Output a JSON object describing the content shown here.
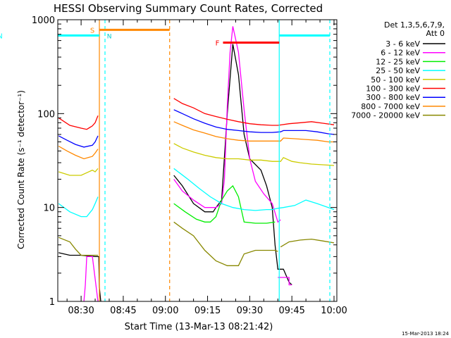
{
  "chart_data": {
    "type": "line",
    "title": "HESSI Observing Summary Count Rates, Corrected",
    "xlabel": "Start Time (13-Mar-13 08:21:42)",
    "ylabel": "Corrected Count Rate (s⁻¹ detector⁻¹)",
    "yscale": "log",
    "ylim": [
      1,
      1000
    ],
    "xlim_minutes": [
      21.7,
      121
    ],
    "x_ticks": [
      {
        "label": "08:30",
        "t": 30
      },
      {
        "label": "08:45",
        "t": 45
      },
      {
        "label": "09:00",
        "t": 60
      },
      {
        "label": "09:15",
        "t": 75
      },
      {
        "label": "09:30",
        "t": 90
      },
      {
        "label": "09:45",
        "t": 105
      },
      {
        "label": "10:00",
        "t": 120
      }
    ],
    "y_ticks": [
      {
        "label": "1",
        "v": 1
      },
      {
        "label": "10",
        "v": 10
      },
      {
        "label": "100",
        "v": 100
      },
      {
        "label": "1000",
        "v": 1000
      }
    ],
    "legend": {
      "header": [
        "Det 1,3,5,6,7,9,",
        "Att 0"
      ],
      "placement": "right"
    },
    "series": [
      {
        "name": "3 - 6 keV",
        "color": "#000000",
        "segments": [
          [
            [
              22,
              3.3
            ],
            [
              26,
              3.1
            ],
            [
              30,
              3.1
            ],
            [
              35,
              3.0
            ],
            [
              36.3,
              3.0
            ],
            [
              36.5,
              1.4
            ],
            [
              37,
              1
            ]
          ],
          [
            [
              63,
              22
            ],
            [
              66,
              17
            ],
            [
              70,
              11
            ],
            [
              74,
              9
            ],
            [
              77,
              9
            ],
            [
              78,
              10
            ],
            [
              80,
              12
            ],
            [
              82,
              100
            ],
            [
              84,
              550
            ],
            [
              86,
              260
            ],
            [
              88,
              60
            ],
            [
              90,
              33
            ],
            [
              94,
              25
            ],
            [
              96,
              17
            ],
            [
              98,
              10
            ],
            [
              99,
              4
            ],
            [
              100,
              2.2
            ],
            [
              102,
              2.2
            ],
            [
              104,
              1.6
            ],
            [
              105,
              1.5
            ]
          ]
        ]
      },
      {
        "name": "6 - 12 keV",
        "color": "#ff00ff",
        "segments": [
          [
            [
              31,
              1
            ],
            [
              31.5,
              1.5
            ],
            [
              32,
              3.0
            ],
            [
              34,
              3.0
            ],
            [
              36,
              1.0
            ]
          ],
          [
            [
              63,
              20
            ],
            [
              66,
              15
            ],
            [
              70,
              12
            ],
            [
              74,
              10
            ],
            [
              78,
              10
            ],
            [
              80,
              11
            ],
            [
              81,
              20
            ],
            [
              82,
              120
            ],
            [
              83,
              450
            ],
            [
              84,
              850
            ],
            [
              86,
              450
            ],
            [
              88,
              110
            ],
            [
              90,
              33
            ],
            [
              92,
              19
            ],
            [
              95,
              14
            ],
            [
              98,
              11
            ],
            [
              100,
              7
            ],
            [
              101,
              7.4
            ]
          ],
          [
            [
              100,
              1.8
            ],
            [
              104,
              1.8
            ],
            [
              104,
              1.5
            ],
            [
              105,
              1.5
            ]
          ]
        ]
      },
      {
        "name": "12 - 25 keV",
        "color": "#00ee00",
        "segments": [
          [
            [
              63,
              11
            ],
            [
              67,
              9
            ],
            [
              71,
              7.5
            ],
            [
              74,
              7
            ],
            [
              76,
              7
            ],
            [
              78,
              8
            ],
            [
              80,
              12
            ],
            [
              82,
              15
            ],
            [
              84,
              17
            ],
            [
              86,
              13
            ],
            [
              88,
              7
            ],
            [
              92,
              6.8
            ],
            [
              96,
              6.8
            ],
            [
              99,
              7
            ]
          ]
        ]
      },
      {
        "name": "25 - 50 keV",
        "color": "#00ffff",
        "segments": [
          [
            [
              22,
              11
            ],
            [
              26,
              9
            ],
            [
              30,
              8
            ],
            [
              32,
              8
            ],
            [
              34,
              9.5
            ],
            [
              35,
              11
            ],
            [
              36,
              13
            ]
          ],
          [
            [
              63,
              26
            ],
            [
              68,
              20
            ],
            [
              72,
              16
            ],
            [
              76,
              13
            ],
            [
              80,
              11
            ],
            [
              84,
              10
            ],
            [
              88,
              9.5
            ],
            [
              92,
              9.3
            ],
            [
              96,
              9.5
            ],
            [
              98,
              9.5
            ],
            [
              100,
              9.8
            ],
            [
              102,
              10
            ],
            [
              106,
              10.5
            ],
            [
              110,
              12
            ],
            [
              114,
              11
            ],
            [
              118,
              10
            ],
            [
              120,
              9.5
            ]
          ]
        ]
      },
      {
        "name": "50 - 100 keV",
        "color": "#cccc00",
        "segments": [
          [
            [
              22,
              24
            ],
            [
              26,
              22
            ],
            [
              30,
              22
            ],
            [
              34,
              25
            ],
            [
              35,
              24
            ],
            [
              36,
              26
            ]
          ],
          [
            [
              63,
              48
            ],
            [
              66,
              43
            ],
            [
              70,
              39
            ],
            [
              74,
              36
            ],
            [
              78,
              34
            ],
            [
              82,
              33
            ],
            [
              86,
              33
            ],
            [
              90,
              32
            ],
            [
              94,
              32
            ],
            [
              98,
              31
            ],
            [
              101,
              31
            ],
            [
              102,
              34
            ],
            [
              105,
              31
            ],
            [
              108,
              30
            ],
            [
              112,
              29
            ],
            [
              116,
              28.5
            ],
            [
              120,
              28
            ]
          ]
        ]
      },
      {
        "name": "100 - 300 keV",
        "color": "#ff0000",
        "segments": [
          [
            [
              22,
              90
            ],
            [
              26,
              75
            ],
            [
              30,
              70
            ],
            [
              32,
              68
            ],
            [
              34,
              74
            ],
            [
              35,
              80
            ],
            [
              36,
              95
            ]
          ],
          [
            [
              63,
              145
            ],
            [
              66,
              128
            ],
            [
              70,
              115
            ],
            [
              74,
              100
            ],
            [
              78,
              93
            ],
            [
              82,
              87
            ],
            [
              86,
              82
            ],
            [
              90,
              78
            ],
            [
              94,
              76
            ],
            [
              98,
              75
            ],
            [
              100,
              75
            ],
            [
              104,
              78
            ],
            [
              108,
              80
            ],
            [
              112,
              82
            ],
            [
              116,
              79
            ],
            [
              120,
              76
            ]
          ]
        ]
      },
      {
        "name": "300 - 800 keV",
        "color": "#0000ff",
        "segments": [
          [
            [
              22,
              58
            ],
            [
              25,
              52
            ],
            [
              28,
              47
            ],
            [
              31,
              44
            ],
            [
              34,
              46
            ],
            [
              35,
              50
            ],
            [
              36,
              58
            ]
          ],
          [
            [
              63,
              110
            ],
            [
              66,
              100
            ],
            [
              70,
              88
            ],
            [
              74,
              79
            ],
            [
              78,
              72
            ],
            [
              82,
              68
            ],
            [
              86,
              66
            ],
            [
              90,
              64
            ],
            [
              94,
              63
            ],
            [
              98,
              63
            ],
            [
              101,
              64
            ],
            [
              102,
              66
            ],
            [
              106,
              66
            ],
            [
              110,
              66
            ],
            [
              114,
              64
            ],
            [
              118,
              61
            ],
            [
              120,
              60
            ]
          ]
        ]
      },
      {
        "name": "800 - 7000 keV",
        "color": "#ff8800",
        "segments": [
          [
            [
              22,
              45
            ],
            [
              25,
              40
            ],
            [
              28,
              36
            ],
            [
              31,
              33
            ],
            [
              34,
              35
            ],
            [
              35,
              38
            ],
            [
              36,
              42
            ]
          ],
          [
            [
              63,
              82
            ],
            [
              66,
              75
            ],
            [
              70,
              67
            ],
            [
              74,
              62
            ],
            [
              78,
              57
            ],
            [
              82,
              54
            ],
            [
              86,
              52
            ],
            [
              90,
              51
            ],
            [
              94,
              51
            ],
            [
              98,
              51
            ],
            [
              101,
              51
            ],
            [
              102,
              55
            ],
            [
              106,
              54
            ],
            [
              110,
              53
            ],
            [
              114,
              52
            ],
            [
              118,
              50
            ],
            [
              120,
              50
            ]
          ]
        ]
      },
      {
        "name": "7000 - 20000 keV",
        "color": "#888800",
        "segments": [
          [
            [
              22,
              4.8
            ],
            [
              26,
              4.3
            ],
            [
              28,
              3.6
            ],
            [
              30,
              3.1
            ],
            [
              32,
              3.1
            ],
            [
              34,
              3.1
            ],
            [
              36,
              3.1
            ]
          ],
          [
            [
              63,
              7
            ],
            [
              66,
              6
            ],
            [
              70,
              5
            ],
            [
              74,
              3.5
            ],
            [
              78,
              2.7
            ],
            [
              82,
              2.4
            ],
            [
              86,
              2.4
            ],
            [
              88,
              3.2
            ],
            [
              92,
              3.5
            ],
            [
              96,
              3.5
            ],
            [
              99,
              3.5
            ],
            [
              100,
              3.4
            ]
          ],
          [
            [
              101,
              3.8
            ],
            [
              104,
              4.3
            ],
            [
              108,
              4.5
            ],
            [
              112,
              4.6
            ],
            [
              116,
              4.4
            ],
            [
              120,
              4.2
            ]
          ]
        ]
      }
    ],
    "flag_bars": [
      {
        "label": "S",
        "color": "#ff8800",
        "t_start": 36.5,
        "t_end": 61.5,
        "v": 780,
        "label_t": 34
      },
      {
        "label": "N",
        "color": "#00ffff",
        "t_start": 21.7,
        "t_end": 36.5,
        "v": 680
      },
      {
        "label": "F",
        "color": "#ff0000",
        "t_start": 80.5,
        "t_end": 100.5,
        "v": 570,
        "label_t": 78.5
      },
      {
        "label": "",
        "color": "#00ffff",
        "t_start": 100.5,
        "t_end": 118.5,
        "v": 680
      }
    ],
    "event_lines": [
      {
        "t": 36.5,
        "color": "#ff8800",
        "style": "solid"
      },
      {
        "t": 38.5,
        "color": "#00ffff",
        "style": "dashed"
      },
      {
        "t": 61.5,
        "color": "#ff8800",
        "style": "dashed"
      },
      {
        "t": 100.5,
        "color": "#00ffff",
        "style": "solid"
      },
      {
        "t": 118.5,
        "color": "#00ffff",
        "style": "dashed"
      }
    ],
    "n_label_t": 39.2,
    "timestamp": "15-Mar-2013 18:24"
  }
}
